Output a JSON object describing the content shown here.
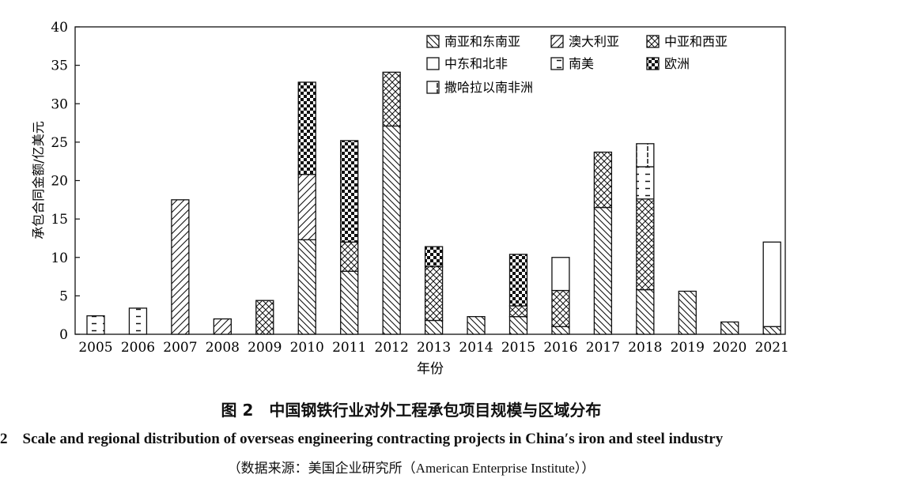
{
  "caption": {
    "cn": "图 2　中国钢铁行业对外工程承包项目规模与区域分布",
    "en": "2　Scale and regional distribution of overseas engineering contracting projects in China′s iron and steel industry",
    "source": "（数据来源：美国企业研究所（American Enterprise Institute））"
  },
  "chart_data": {
    "type": "bar",
    "stacked": true,
    "xlabel": "年份",
    "ylabel": "承包合同金额/亿美元",
    "ylim": [
      0,
      40
    ],
    "yticks": [
      0,
      5,
      10,
      15,
      20,
      25,
      30,
      35,
      40
    ],
    "grid": false,
    "legend_position": "top-right",
    "categories": [
      "2005",
      "2006",
      "2007",
      "2008",
      "2009",
      "2010",
      "2011",
      "2012",
      "2013",
      "2014",
      "2015",
      "2016",
      "2017",
      "2018",
      "2019",
      "2020",
      "2021"
    ],
    "series": [
      {
        "name": "南亚和东南亚",
        "pattern": "southasia",
        "values": [
          0,
          0,
          0,
          0,
          0,
          12.3,
          8.2,
          27.1,
          1.8,
          2.3,
          2.3,
          1.0,
          16.5,
          5.8,
          5.6,
          1.6,
          1.0
        ]
      },
      {
        "name": "澳大利亚",
        "pattern": "australia",
        "values": [
          0,
          0,
          17.5,
          2.0,
          0,
          8.5,
          0,
          0,
          0,
          0,
          0,
          0,
          0,
          0,
          0,
          0,
          0
        ]
      },
      {
        "name": "中亚和西亚",
        "pattern": "centralasia",
        "values": [
          0,
          0,
          0,
          0,
          4.4,
          0,
          3.8,
          7.0,
          7.0,
          0,
          1.4,
          4.7,
          7.2,
          11.8,
          0,
          0,
          0
        ]
      },
      {
        "name": "中东和北非",
        "pattern": "middleeast",
        "values": [
          0,
          0,
          0,
          0,
          0,
          0,
          0,
          0,
          0,
          0,
          0,
          4.3,
          0,
          0,
          0,
          0,
          11.0
        ]
      },
      {
        "name": "南美",
        "pattern": "southamerica",
        "values": [
          2.4,
          3.4,
          0,
          0,
          0,
          0,
          0,
          0,
          0,
          0,
          0,
          0,
          0,
          4.2,
          0,
          0,
          0
        ]
      },
      {
        "name": "欧洲",
        "pattern": "europe",
        "values": [
          0,
          0,
          0,
          0,
          0,
          12.0,
          13.2,
          0,
          2.6,
          0,
          6.7,
          0,
          0,
          0,
          0,
          0,
          0
        ]
      },
      {
        "name": "撒哈拉以南非洲",
        "pattern": "africa",
        "values": [
          0,
          0,
          0,
          0,
          0,
          0,
          0,
          0,
          0,
          0,
          0,
          0,
          0,
          3.0,
          0,
          0,
          0
        ]
      }
    ]
  }
}
